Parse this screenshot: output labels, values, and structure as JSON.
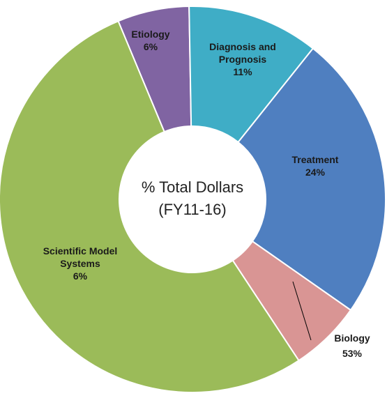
{
  "chart_data": {
    "type": "donut",
    "title": "% Total Dollars",
    "subtitle": "(FY11-16)",
    "categories": [
      "Etiology",
      "Diagnosis and Prognosis",
      "Treatment",
      "Scientific Model Systems",
      "Biology"
    ],
    "values": [
      6,
      11,
      24,
      6,
      53
    ],
    "value_labels": [
      "6%",
      "11%",
      "24%",
      "6%",
      "53%"
    ],
    "colors": [
      "#8064a2",
      "#3fadc6",
      "#4f7fc0",
      "#d99594",
      "#9bbb59"
    ]
  }
}
